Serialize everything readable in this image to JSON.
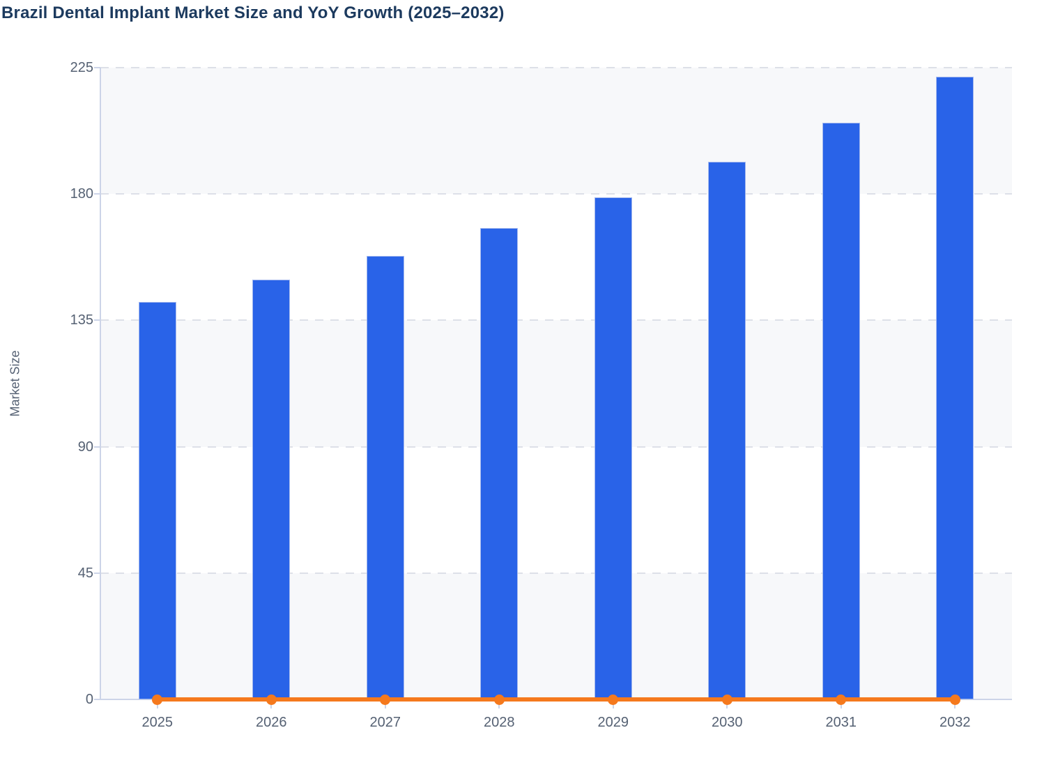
{
  "title": "Brazil Dental Implant Market Size and YoY Growth (2025–2032)",
  "chart_data": {
    "type": "bar",
    "title": "Brazil Dental Implant Market Size and YoY Growth (2025–2032)",
    "ylabel": "Market Size",
    "xlabel": "",
    "categories": [
      "2025",
      "2026",
      "2027",
      "2028",
      "2029",
      "2030",
      "2031",
      "2032"
    ],
    "series": [
      {
        "name": "Market Size",
        "type": "bar",
        "color": "#2963e8",
        "values": [
          141.5,
          149.5,
          158,
          168,
          178.9,
          191.4,
          205.4,
          221.8
        ]
      },
      {
        "name": "YoY Growth",
        "type": "line",
        "color": "#f5791d",
        "values": [
          0,
          0,
          0,
          0,
          0,
          0,
          0,
          0
        ],
        "note": "line with circular markers drawn flat along the zero baseline"
      }
    ],
    "ylim": [
      0,
      225
    ],
    "yticks": [
      0,
      45,
      90,
      135,
      180,
      225
    ],
    "grid": "horizontal dashed",
    "legend": "none",
    "background_bands": "alternating gray/white horizontal bands between gridlines, gray topmost"
  },
  "colors": {
    "bar_fill": "#2963e8",
    "bar_border": "#a6baee",
    "line": "#f5791d",
    "title_text": "#1c3a5e",
    "axis_text": "#556173",
    "gridline": "#dde0e8",
    "axis_line": "#ccd4e8",
    "band_gray": "#f7f8fa",
    "band_white": "#ffffff",
    "page_bg": "#ffffff"
  }
}
